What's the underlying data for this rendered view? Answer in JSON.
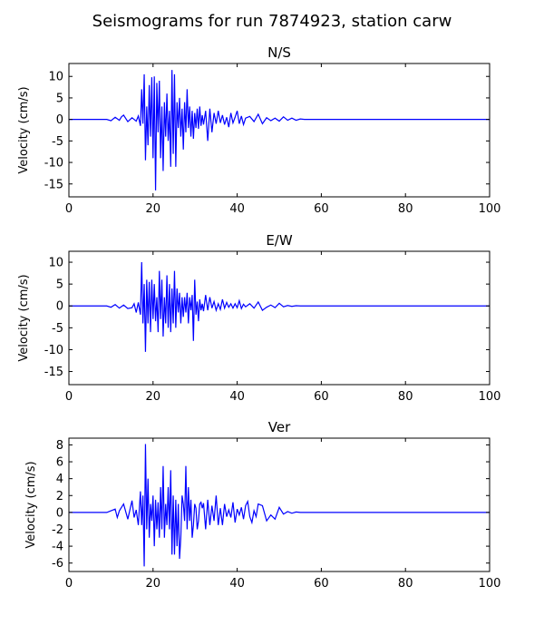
{
  "figure": {
    "title": "Seismograms for run 7874923, station carw"
  },
  "colors": {
    "trace": "#0000ff",
    "axes": "#000000",
    "background": "#ffffff"
  },
  "chart_data": [
    {
      "type": "line",
      "title": "N/S",
      "xlabel": "",
      "ylabel": "Velocity (cm/s)",
      "xlim": [
        0,
        100
      ],
      "ylim": [
        -18,
        13
      ],
      "xticks": [
        "0",
        "20",
        "40",
        "60",
        "80",
        "100"
      ],
      "yticks": [
        "10",
        "5",
        "0",
        "-5",
        "-10",
        "-15"
      ],
      "grid": false,
      "series": [
        {
          "x": [
            0,
            9,
            10,
            11,
            12,
            12.5,
            13,
            14,
            15,
            16,
            16.5,
            17,
            17.3,
            17.6,
            17.9,
            18.2,
            18.5,
            18.8,
            19.1,
            19.4,
            19.7,
            20,
            20.3,
            20.6,
            20.9,
            21.2,
            21.5,
            21.8,
            22.1,
            22.4,
            22.7,
            23,
            23.3,
            23.6,
            23.9,
            24.2,
            24.5,
            24.8,
            25.1,
            25.4,
            25.7,
            26,
            26.3,
            26.6,
            26.9,
            27.2,
            27.5,
            27.8,
            28.1,
            28.4,
            28.7,
            29,
            29.3,
            29.6,
            29.9,
            30.2,
            30.5,
            30.8,
            31.1,
            31.4,
            31.7,
            32,
            32.5,
            33,
            33.5,
            34,
            34.5,
            35,
            35.5,
            36,
            36.5,
            37,
            37.5,
            38,
            38.5,
            39,
            39.5,
            40,
            40.5,
            41,
            41.5,
            42,
            43,
            44,
            45,
            46,
            47,
            48,
            49,
            50,
            51,
            52,
            53,
            54,
            55,
            56,
            58,
            60,
            100
          ],
          "y": [
            0,
            0,
            -0.3,
            0.5,
            -0.2,
            0.6,
            1,
            -0.5,
            0.4,
            -0.4,
            0.8,
            -1.5,
            7,
            -1,
            10.5,
            -9.5,
            3,
            -6,
            8,
            -4,
            9.8,
            -9,
            10,
            -16.5,
            8.5,
            -3,
            9,
            -9,
            3,
            -12,
            4,
            -4,
            6,
            -5,
            2,
            -11,
            11.5,
            -8,
            10.5,
            -11,
            4,
            -2,
            5,
            -4,
            2.5,
            -7,
            4,
            -3,
            7,
            -2,
            3,
            -4,
            2,
            -4.5,
            1.5,
            -2,
            2.5,
            -2.2,
            3,
            -1.5,
            1,
            -1.2,
            2,
            -5,
            2.5,
            -3,
            1.5,
            -1,
            2,
            -0.8,
            1,
            -1.2,
            0.5,
            -1.8,
            1.5,
            -0.8,
            0.5,
            2,
            -1,
            0.8,
            -1.2,
            0.3,
            0.7,
            -0.5,
            1.2,
            -1,
            0.4,
            -0.3,
            0.3,
            -0.4,
            0.6,
            -0.2,
            0.3,
            -0.2,
            0.1,
            0,
            0,
            0,
            0
          ]
        }
      ]
    },
    {
      "type": "line",
      "title": "E/W",
      "xlabel": "",
      "ylabel": "Velocity (cm/s)",
      "xlim": [
        0,
        100
      ],
      "ylim": [
        -18,
        12.5
      ],
      "xticks": [
        "0",
        "20",
        "40",
        "60",
        "80",
        "100"
      ],
      "yticks": [
        "10",
        "5",
        "0",
        "-5",
        "-10",
        "-15"
      ],
      "grid": false,
      "series": [
        {
          "x": [
            0,
            9,
            10,
            11,
            12,
            13,
            14,
            15,
            15.5,
            16,
            16.5,
            17,
            17.3,
            17.6,
            17.9,
            18.2,
            18.5,
            18.8,
            19.1,
            19.4,
            19.7,
            20,
            20.3,
            20.6,
            20.9,
            21.2,
            21.5,
            21.8,
            22.1,
            22.4,
            22.7,
            23,
            23.3,
            23.6,
            23.9,
            24.2,
            24.5,
            24.8,
            25.1,
            25.4,
            25.7,
            26,
            26.3,
            26.6,
            26.9,
            27.2,
            27.5,
            27.8,
            28.1,
            28.4,
            28.7,
            29,
            29.3,
            29.6,
            29.9,
            30.2,
            30.5,
            30.8,
            31.1,
            31.4,
            31.7,
            32,
            32.5,
            33,
            33.5,
            34,
            34.5,
            35,
            35.5,
            36,
            36.5,
            37,
            37.5,
            38,
            38.5,
            39,
            39.5,
            40,
            40.5,
            41,
            41.5,
            42,
            43,
            44,
            45,
            46,
            47,
            48,
            49,
            50,
            51,
            52,
            53,
            54,
            55,
            56,
            58,
            60,
            100
          ],
          "y": [
            0,
            0,
            -0.3,
            0.3,
            -0.5,
            0.2,
            -0.6,
            -0.4,
            0.5,
            -1.5,
            0.8,
            -2,
            10,
            -4,
            5,
            -10.5,
            6,
            -4,
            5.5,
            -6,
            6,
            -3,
            5,
            -3.5,
            2,
            -6,
            8,
            -3,
            6,
            -7,
            2,
            -4,
            7,
            -5,
            5,
            -6,
            4,
            -4,
            8,
            -5,
            4,
            -1.5,
            3,
            -4,
            2,
            -2.5,
            2,
            -1.5,
            3,
            -4,
            2,
            -1,
            2.5,
            -8,
            6,
            -2,
            1,
            -3.5,
            1.5,
            -1,
            0.5,
            -1.2,
            2.5,
            -1,
            2,
            -0.5,
            1,
            -1,
            0.5,
            -0.8,
            1.5,
            -0.5,
            0.8,
            -0.3,
            0.5,
            -0.5,
            0.5,
            -0.4,
            1.2,
            -0.6,
            0.4,
            -0.2,
            0.5,
            -0.5,
            0.9,
            -1,
            -0.3,
            0.2,
            -0.4,
            0.6,
            -0.2,
            0.1,
            -0.1,
            0.05,
            0,
            0,
            0,
            0,
            0
          ]
        }
      ]
    },
    {
      "type": "line",
      "title": "Ver",
      "xlabel": "",
      "ylabel": "Velocity (cm/s)",
      "xlim": [
        0,
        100
      ],
      "ylim": [
        -7,
        8.8
      ],
      "xticks": [
        "0",
        "20",
        "40",
        "60",
        "80",
        "100"
      ],
      "yticks": [
        "8",
        "6",
        "4",
        "2",
        "0",
        "-2",
        "-4",
        "-6"
      ],
      "grid": false,
      "series": [
        {
          "x": [
            0,
            9,
            10,
            11,
            11.5,
            12,
            13,
            14,
            15,
            15.5,
            16,
            16.5,
            17,
            17.3,
            17.6,
            17.9,
            18.2,
            18.5,
            18.8,
            19.1,
            19.4,
            19.7,
            20,
            20.3,
            20.6,
            20.9,
            21.2,
            21.5,
            21.8,
            22.1,
            22.4,
            22.7,
            23,
            23.3,
            23.6,
            23.9,
            24.2,
            24.5,
            24.8,
            25.1,
            25.4,
            25.7,
            26,
            26.3,
            26.6,
            26.9,
            27.2,
            27.5,
            27.8,
            28.1,
            28.4,
            28.7,
            29,
            29.3,
            29.6,
            29.9,
            30.2,
            30.5,
            30.8,
            31.1,
            31.4,
            31.7,
            32,
            32.5,
            33,
            33.5,
            34,
            34.5,
            35,
            35.5,
            36,
            36.5,
            37,
            37.5,
            38,
            38.5,
            39,
            39.5,
            40,
            40.5,
            41,
            41.5,
            42,
            42.5,
            43,
            43.5,
            44,
            44.5,
            45,
            46,
            47,
            48,
            49,
            50,
            51,
            52,
            53,
            54,
            55,
            56,
            58,
            60,
            100
          ],
          "y": [
            0,
            0,
            0.2,
            0.4,
            -0.6,
            0.2,
            1,
            -0.8,
            1.4,
            -0.6,
            0.3,
            -1.5,
            2.5,
            -1.5,
            2,
            -6.4,
            8.1,
            -2,
            4,
            -3,
            1,
            -1,
            2,
            -4,
            1.5,
            -2,
            1.2,
            -3,
            3,
            -2,
            5.5,
            -3,
            1,
            -1.5,
            3,
            -2,
            5,
            -5,
            2,
            -5,
            1.5,
            -4,
            1,
            -5.5,
            -3,
            2,
            1,
            -1,
            5.5,
            -2,
            3,
            -1,
            1.5,
            -3,
            -1.5,
            1,
            0.5,
            -2,
            -1,
            1,
            1.2,
            0.5,
            1.1,
            -2,
            1.5,
            -1.5,
            0.8,
            -1,
            2,
            -1.5,
            0.5,
            -1.5,
            1,
            -0.5,
            0.3,
            -0.6,
            1.2,
            -1.2,
            0.4,
            -0.3,
            0.6,
            -0.8,
            0.8,
            1.3,
            -0.5,
            -1.2,
            0.2,
            -0.5,
            1,
            0.8,
            -1,
            -0.3,
            -0.8,
            0.6,
            -0.2,
            0.1,
            -0.1,
            0.05,
            0,
            0,
            0,
            0,
            0
          ]
        }
      ]
    }
  ]
}
